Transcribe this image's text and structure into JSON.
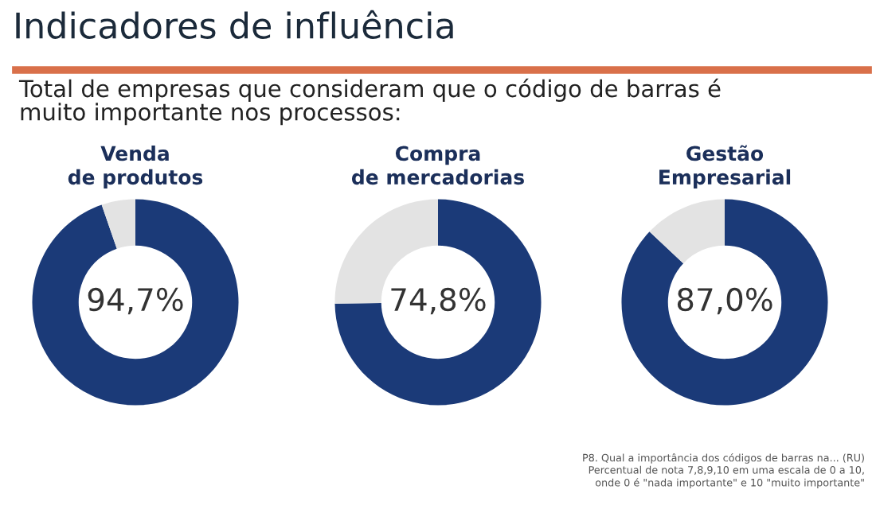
{
  "chart_data": [
    {
      "type": "donut",
      "title": "Venda\nde produtos",
      "categories": [
        null,
        null
      ],
      "values": [
        94.7,
        5.3
      ],
      "colors": [
        "#1b3a78",
        "#e3e3e3"
      ],
      "value_labels": [
        "94,7%",
        null
      ],
      "annotations": [
        "Indicadores de influência",
        "Total de empresas que consideram que o código de barras é\nmuito importante nos processos:"
      ]
    },
    {
      "type": "donut",
      "title": "Compra\nde mercadorias",
      "categories": [
        null,
        null
      ],
      "values": [
        74.8,
        25.2
      ],
      "colors": [
        "#1b3a78",
        "#e3e3e3"
      ],
      "value_labels": [
        "74,8%",
        null
      ]
    },
    {
      "type": "donut",
      "title": "Gestão\nEmpresarial",
      "categories": [
        null,
        null
      ],
      "values": [
        87.0,
        13.0
      ],
      "colors": [
        "#1b3a78",
        "#e3e3e3"
      ],
      "value_labels": [
        "87,0%",
        null
      ],
      "annotations": [
        "P8. Qual a importância dos códigos de barras na... (RU)\nPercentual de nota 7,8,9,10 em uma escala de 0 a 10,\nonde 0 é \"nada importante\" e 10 \"muito importante\""
      ]
    }
  ]
}
